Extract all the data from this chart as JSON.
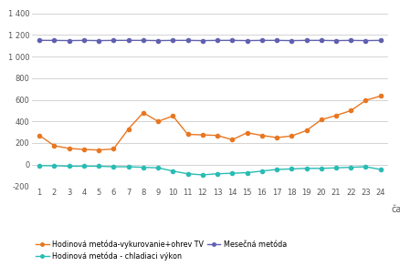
{
  "months": [
    1,
    2,
    3,
    4,
    5,
    6,
    7,
    8,
    9,
    10,
    11,
    12,
    13,
    14,
    15,
    16,
    17,
    18,
    19,
    20,
    21,
    22,
    23,
    24
  ],
  "hodinova_vyk": [
    270,
    175,
    150,
    140,
    135,
    145,
    330,
    480,
    400,
    450,
    280,
    275,
    270,
    230,
    295,
    270,
    250,
    265,
    315,
    415,
    455,
    500,
    595,
    635
  ],
  "hodinova_chl": [
    -10,
    -10,
    -15,
    -15,
    -15,
    -20,
    -20,
    -25,
    -30,
    -60,
    -85,
    -95,
    -85,
    -80,
    -75,
    -60,
    -45,
    -40,
    -35,
    -35,
    -30,
    -25,
    -20,
    -45
  ],
  "mesacna": [
    1150,
    1150,
    1148,
    1150,
    1148,
    1150,
    1150,
    1150,
    1148,
    1150,
    1150,
    1148,
    1150,
    1150,
    1148,
    1150,
    1150,
    1148,
    1150,
    1150,
    1148,
    1150,
    1148,
    1150
  ],
  "color_vyk": "#e87722",
  "color_chl": "#2abcb4",
  "color_mes": "#6060b0",
  "ylim": [
    -200,
    1450
  ],
  "yticks": [
    -200,
    0,
    200,
    400,
    600,
    800,
    1000,
    1200,
    1400
  ],
  "ytick_labels": [
    "-200",
    "0",
    "200",
    "400",
    "600",
    "800",
    "1 000",
    "1 200",
    "1 400"
  ],
  "xlabel": "čas",
  "legend_vyk": "Hodinová metóda-vykurovanie+ohrev TV",
  "legend_chl": "Hodinová metóda - chladiaci výkon",
  "legend_mes": "Mesečná metóda",
  "bg_color": "#ffffff"
}
